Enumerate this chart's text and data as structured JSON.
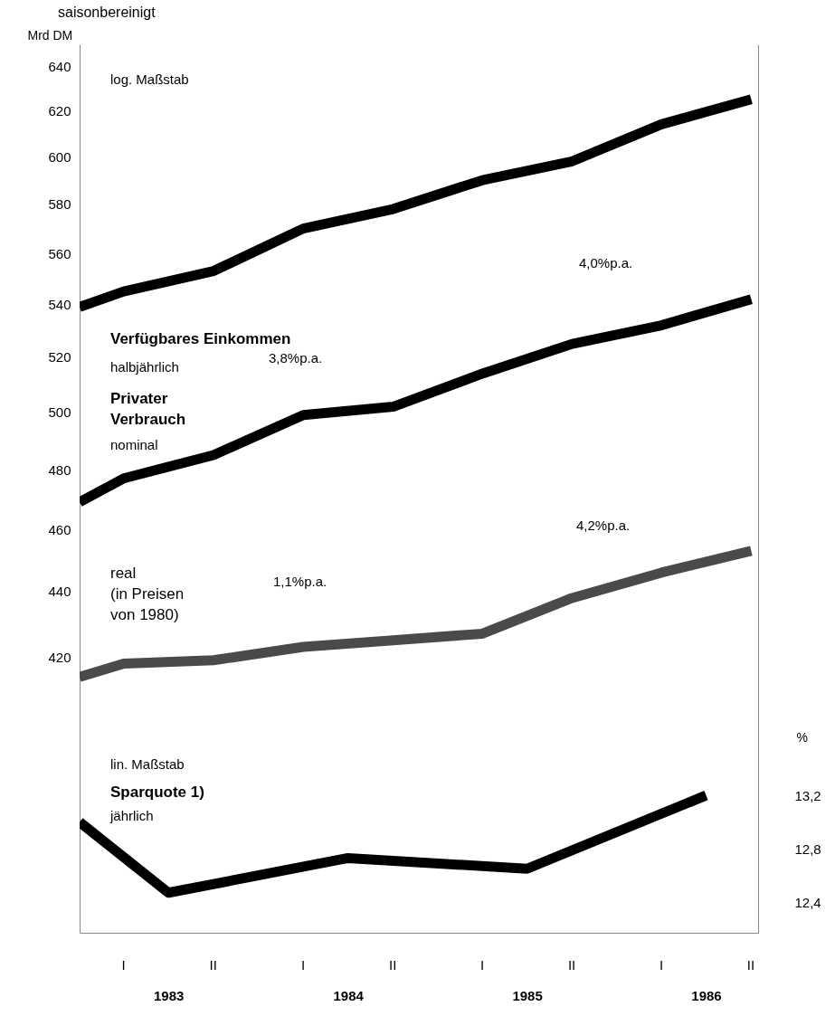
{
  "chart_data": {
    "type": "line",
    "title": "saisonbereinigt",
    "ylabel": "Mrd DM",
    "y2label": "%",
    "log": true,
    "xlim": [
      "1983-01-01",
      "1986-10-15"
    ],
    "ylim": [
      345,
      650
    ],
    "yticks": [
      420,
      440,
      460,
      480,
      500,
      520,
      540,
      560,
      580,
      600,
      620,
      640
    ],
    "y2lim": [
      12.17,
      18.83
    ],
    "y2ticks": [
      {
        "value": 12.4,
        "label": "12,4"
      },
      {
        "value": 12.8,
        "label": "12,8"
      },
      {
        "value": 13.2,
        "label": "13,2"
      }
    ],
    "xticks": [
      {
        "value": "1983-07-01",
        "label": "1983"
      },
      {
        "value": "1984-07-01",
        "label": "1984"
      },
      {
        "value": "1985-07-01",
        "label": "1985"
      },
      {
        "value": "1986-07-01",
        "label": "1986"
      }
    ],
    "x": [
      "1983-01-01",
      "1983-04-01",
      "1983-10-01",
      "1984-04-01",
      "1984-10-01",
      "1985-04-01",
      "1985-10-01",
      "1986-04-01",
      "1986-10-01"
    ],
    "series": [
      {
        "name": "Verfügbares Einkommen",
        "color": "#000000",
        "values": [
          539,
          545,
          553,
          570,
          578,
          590,
          598,
          614,
          625
        ]
      },
      {
        "name": "Privater\nVerbrauch",
        "color": "#000000",
        "values": [
          469,
          477,
          485,
          499,
          502,
          514,
          525,
          532,
          542
        ]
      },
      {
        "name": "real\n(in Preisen\nvon 1980)",
        "color": "#4a4a4a",
        "values": [
          414,
          418,
          419,
          423,
          425,
          427,
          438,
          446,
          453
        ]
      },
      {
        "name": "Sparquote 1)",
        "color": "#000000",
        "axis": "y2",
        "x": [
          "1983-01-01",
          "1983-07-01",
          "1984-07-01",
          "1985-07-01",
          "1986-07-01"
        ],
        "values": [
          13.0,
          12.47,
          12.73,
          12.65,
          13.2
        ]
      }
    ],
    "annotations": [
      "log. Maßstab",
      "halbjährlich",
      "nominal",
      "3,8%p.a.",
      "4,0%p.a.",
      "1,1%p.a.",
      "4,2%p.a.",
      "lin. Maßstab",
      "jährlich",
      "I",
      "II",
      "I",
      "II",
      "I",
      "II",
      "I",
      "II"
    ]
  }
}
